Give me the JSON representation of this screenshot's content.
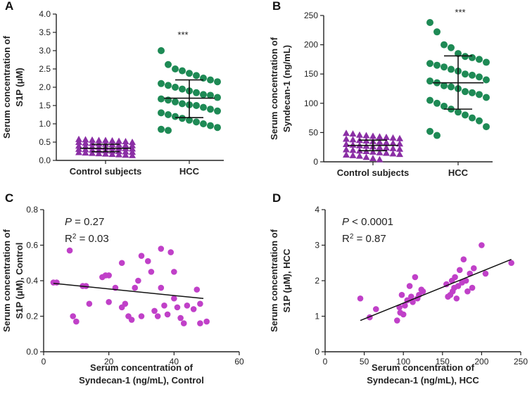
{
  "chart_data": [
    {
      "panel": "A",
      "type": "scatter",
      "ylabel_lines": [
        "Serum concentration of",
        "S1P (μM)"
      ],
      "categories": [
        "Control subjects",
        "HCC"
      ],
      "ylim": [
        0,
        4.0
      ],
      "yticks": [
        "0.0",
        "0.5",
        "1.0",
        "1.5",
        "2.0",
        "2.5",
        "3.0",
        "3.5",
        "4.0"
      ],
      "annotation": "***",
      "series": [
        {
          "category": "Control subjects",
          "marker": "triangle",
          "color": "#8b2fa5",
          "mean": 0.33,
          "sd_low": 0.24,
          "sd_high": 0.44,
          "values": [
            0.58,
            0.57,
            0.56,
            0.55,
            0.55,
            0.54,
            0.53,
            0.52,
            0.5,
            0.5,
            0.48,
            0.47,
            0.46,
            0.45,
            0.44,
            0.43,
            0.42,
            0.41,
            0.4,
            0.39,
            0.38,
            0.37,
            0.36,
            0.35,
            0.34,
            0.33,
            0.32,
            0.31,
            0.3,
            0.29,
            0.28,
            0.27,
            0.26,
            0.25,
            0.24,
            0.23,
            0.22,
            0.21,
            0.2,
            0.19,
            0.18,
            0.17,
            0.16,
            0.15,
            0.14
          ]
        },
        {
          "category": "HCC",
          "marker": "circle",
          "color": "#1e8a55",
          "mean": 1.7,
          "sd_low": 1.17,
          "sd_high": 2.2,
          "values": [
            3.0,
            2.62,
            2.5,
            2.45,
            2.38,
            2.32,
            2.25,
            2.2,
            2.15,
            2.1,
            2.05,
            2.0,
            1.95,
            1.9,
            1.85,
            1.8,
            1.78,
            1.72,
            1.68,
            1.65,
            1.6,
            1.55,
            1.52,
            1.5,
            1.45,
            1.4,
            1.35,
            1.3,
            1.25,
            1.2,
            1.15,
            1.1,
            1.05,
            1.0,
            0.95,
            0.9,
            0.85,
            0.82
          ]
        }
      ]
    },
    {
      "panel": "B",
      "type": "scatter",
      "ylabel_lines": [
        "Serum concentration of",
        "Syndecan-1 (ng/mL)"
      ],
      "categories": [
        "Control subjects",
        "HCC"
      ],
      "ylim": [
        0,
        250
      ],
      "yticks": [
        "0",
        "50",
        "100",
        "150",
        "200",
        "250"
      ],
      "annotation": "***",
      "series": [
        {
          "category": "Control subjects",
          "marker": "triangle",
          "color": "#8b2fa5",
          "mean": 28,
          "sd_low": 19,
          "sd_high": 37,
          "values": [
            49,
            48,
            46,
            45,
            44,
            43,
            42,
            41,
            40,
            39,
            38,
            37,
            36,
            35,
            34,
            33,
            32,
            31,
            30,
            29,
            28,
            27,
            26,
            25,
            24,
            23,
            22,
            21,
            20,
            19,
            18,
            17,
            16,
            15,
            14,
            13,
            12,
            11,
            10,
            8,
            6,
            4
          ]
        },
        {
          "category": "HCC",
          "marker": "circle",
          "color": "#1e8a55",
          "mean": 135,
          "sd_low": 90,
          "sd_high": 181,
          "values": [
            238,
            222,
            200,
            195,
            185,
            180,
            178,
            175,
            170,
            168,
            165,
            162,
            158,
            155,
            150,
            148,
            145,
            140,
            138,
            135,
            130,
            128,
            125,
            120,
            118,
            115,
            110,
            105,
            100,
            95,
            90,
            85,
            80,
            75,
            70,
            60,
            52,
            45
          ]
        }
      ]
    },
    {
      "panel": "C",
      "type": "scatter",
      "xlabel_lines": [
        "Serum concentration of",
        "Syndecan-1 (ng/mL), Control"
      ],
      "ylabel_lines": [
        "Serum concentration of",
        "S1P (μM), Control"
      ],
      "xlim": [
        0,
        60
      ],
      "ylim": [
        0,
        0.8
      ],
      "xticks": [
        "0",
        "20",
        "40",
        "60"
      ],
      "yticks": [
        "0.0",
        "0.2",
        "0.4",
        "0.6",
        "0.8"
      ],
      "stat_p_label": "P",
      "stat_p_text": " = 0.27",
      "stat_r2_label": "R",
      "stat_r2_text": " = 0.03",
      "color": "#c040c8",
      "regression": {
        "x1": 3,
        "y1": 0.385,
        "x2": 49,
        "y2": 0.3
      },
      "points": [
        [
          3,
          0.39
        ],
        [
          4,
          0.39
        ],
        [
          8,
          0.57
        ],
        [
          9,
          0.2
        ],
        [
          10,
          0.17
        ],
        [
          12,
          0.37
        ],
        [
          13,
          0.37
        ],
        [
          14,
          0.27
        ],
        [
          18,
          0.42
        ],
        [
          19,
          0.43
        ],
        [
          20,
          0.43
        ],
        [
          20,
          0.28
        ],
        [
          22,
          0.36
        ],
        [
          24,
          0.25
        ],
        [
          24,
          0.5
        ],
        [
          25,
          0.27
        ],
        [
          26,
          0.2
        ],
        [
          27,
          0.18
        ],
        [
          28,
          0.36
        ],
        [
          29,
          0.4
        ],
        [
          30,
          0.54
        ],
        [
          30,
          0.2
        ],
        [
          32,
          0.51
        ],
        [
          33,
          0.45
        ],
        [
          34,
          0.23
        ],
        [
          35,
          0.2
        ],
        [
          36,
          0.58
        ],
        [
          36,
          0.36
        ],
        [
          37,
          0.26
        ],
        [
          38,
          0.21
        ],
        [
          39,
          0.56
        ],
        [
          40,
          0.45
        ],
        [
          40,
          0.3
        ],
        [
          41,
          0.25
        ],
        [
          42,
          0.19
        ],
        [
          43,
          0.16
        ],
        [
          44,
          0.26
        ],
        [
          46,
          0.24
        ],
        [
          47,
          0.35
        ],
        [
          48,
          0.27
        ],
        [
          48,
          0.16
        ],
        [
          50,
          0.17
        ]
      ]
    },
    {
      "panel": "D",
      "type": "scatter",
      "xlabel_lines": [
        "Serum concentration of",
        "Syndecan-1 (ng/mL), HCC"
      ],
      "ylabel_lines": [
        "Serum concentration of",
        "S1P (μM), HCC"
      ],
      "xlim": [
        0,
        250
      ],
      "ylim": [
        0,
        4
      ],
      "xticks": [
        "0",
        "50",
        "100",
        "150",
        "200",
        "250"
      ],
      "yticks": [
        "0",
        "1",
        "2",
        "3",
        "4"
      ],
      "stat_p_label": "P",
      "stat_p_text": " < 0.0001",
      "stat_r2_label": "R",
      "stat_r2_text": " = 0.87",
      "color": "#c040c8",
      "regression": {
        "x1": 45,
        "y1": 0.88,
        "x2": 238,
        "y2": 2.6
      },
      "points": [
        [
          45,
          1.5
        ],
        [
          57,
          0.97
        ],
        [
          65,
          1.2
        ],
        [
          92,
          0.88
        ],
        [
          95,
          1.25
        ],
        [
          96,
          1.1
        ],
        [
          98,
          1.6
        ],
        [
          100,
          1.05
        ],
        [
          102,
          1.3
        ],
        [
          105,
          1.45
        ],
        [
          108,
          1.85
        ],
        [
          110,
          1.55
        ],
        [
          112,
          1.4
        ],
        [
          115,
          2.1
        ],
        [
          118,
          1.5
        ],
        [
          120,
          1.6
        ],
        [
          123,
          1.75
        ],
        [
          125,
          1.7
        ],
        [
          155,
          1.9
        ],
        [
          157,
          1.55
        ],
        [
          160,
          1.6
        ],
        [
          162,
          2.0
        ],
        [
          163,
          1.7
        ],
        [
          165,
          1.8
        ],
        [
          166,
          2.1
        ],
        [
          168,
          1.5
        ],
        [
          170,
          1.85
        ],
        [
          172,
          2.3
        ],
        [
          175,
          1.95
        ],
        [
          177,
          2.6
        ],
        [
          180,
          2.0
        ],
        [
          182,
          1.7
        ],
        [
          185,
          2.2
        ],
        [
          188,
          1.8
        ],
        [
          190,
          2.35
        ],
        [
          200,
          3.0
        ],
        [
          205,
          2.2
        ],
        [
          238,
          2.5
        ]
      ]
    }
  ]
}
